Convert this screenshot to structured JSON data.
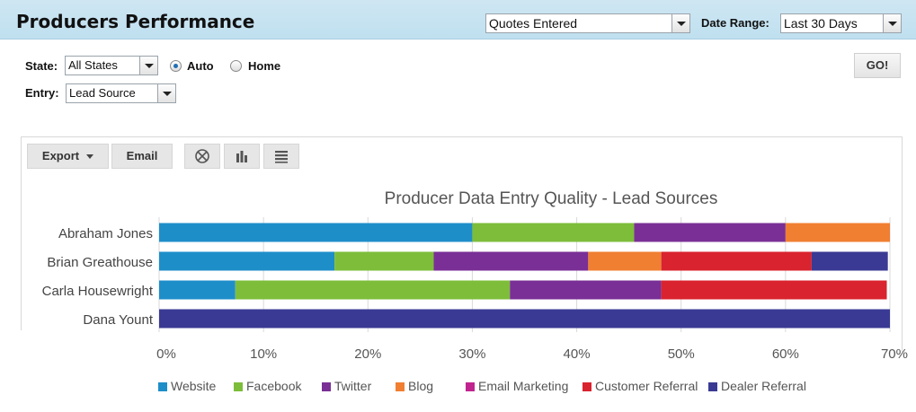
{
  "header": {
    "title": "Producers Performance",
    "metric_select": "Quotes Entered",
    "date_range_label": "Date Range:",
    "date_range_value": "Last 30 Days"
  },
  "filters": {
    "state_label": "State:",
    "state_value": "All States",
    "radio_auto": "Auto",
    "radio_home": "Home",
    "selected_radio": "Auto",
    "entry_label": "Entry:",
    "entry_value": "Lead Source",
    "go_label": "GO!"
  },
  "toolbar": {
    "export_label": "Export",
    "email_label": "Email",
    "icons": [
      "pie-chart-icon",
      "bar-chart-icon",
      "table-view-icon"
    ]
  },
  "chart_data": {
    "type": "bar",
    "orientation": "horizontal",
    "stacked": true,
    "title": "Producer Data Entry Quality - Lead Sources",
    "xlabel": "",
    "ylabel": "",
    "xlim": [
      0,
      70
    ],
    "x_ticks": [
      "0%",
      "10%",
      "20%",
      "30%",
      "40%",
      "50%",
      "60%",
      "70%"
    ],
    "grid": true,
    "legend_position": "bottom",
    "categories": [
      "Abraham Jones",
      "Brian Greathouse",
      "Carla Housewright",
      "Dana Yount"
    ],
    "series": [
      {
        "name": "Website",
        "color": "#1e8ec9",
        "values": [
          30,
          16.8,
          7.3,
          0
        ]
      },
      {
        "name": "Facebook",
        "color": "#7dbd3a",
        "values": [
          15.5,
          9.5,
          26.3,
          0
        ]
      },
      {
        "name": "Twitter",
        "color": "#7a2f96",
        "values": [
          14.5,
          14.8,
          14.5,
          0
        ]
      },
      {
        "name": "Blog",
        "color": "#f07f32",
        "values": [
          10,
          7,
          0,
          0
        ]
      },
      {
        "name": "Email Marketing",
        "color": "#c0248f",
        "values": [
          0,
          0,
          0,
          0
        ]
      },
      {
        "name": "Customer Referral",
        "color": "#d9232e",
        "values": [
          0,
          14.4,
          21.6,
          0
        ]
      },
      {
        "name": "Dealer Referral",
        "color": "#3a3a94",
        "values": [
          0,
          7.3,
          0,
          70
        ]
      }
    ]
  }
}
